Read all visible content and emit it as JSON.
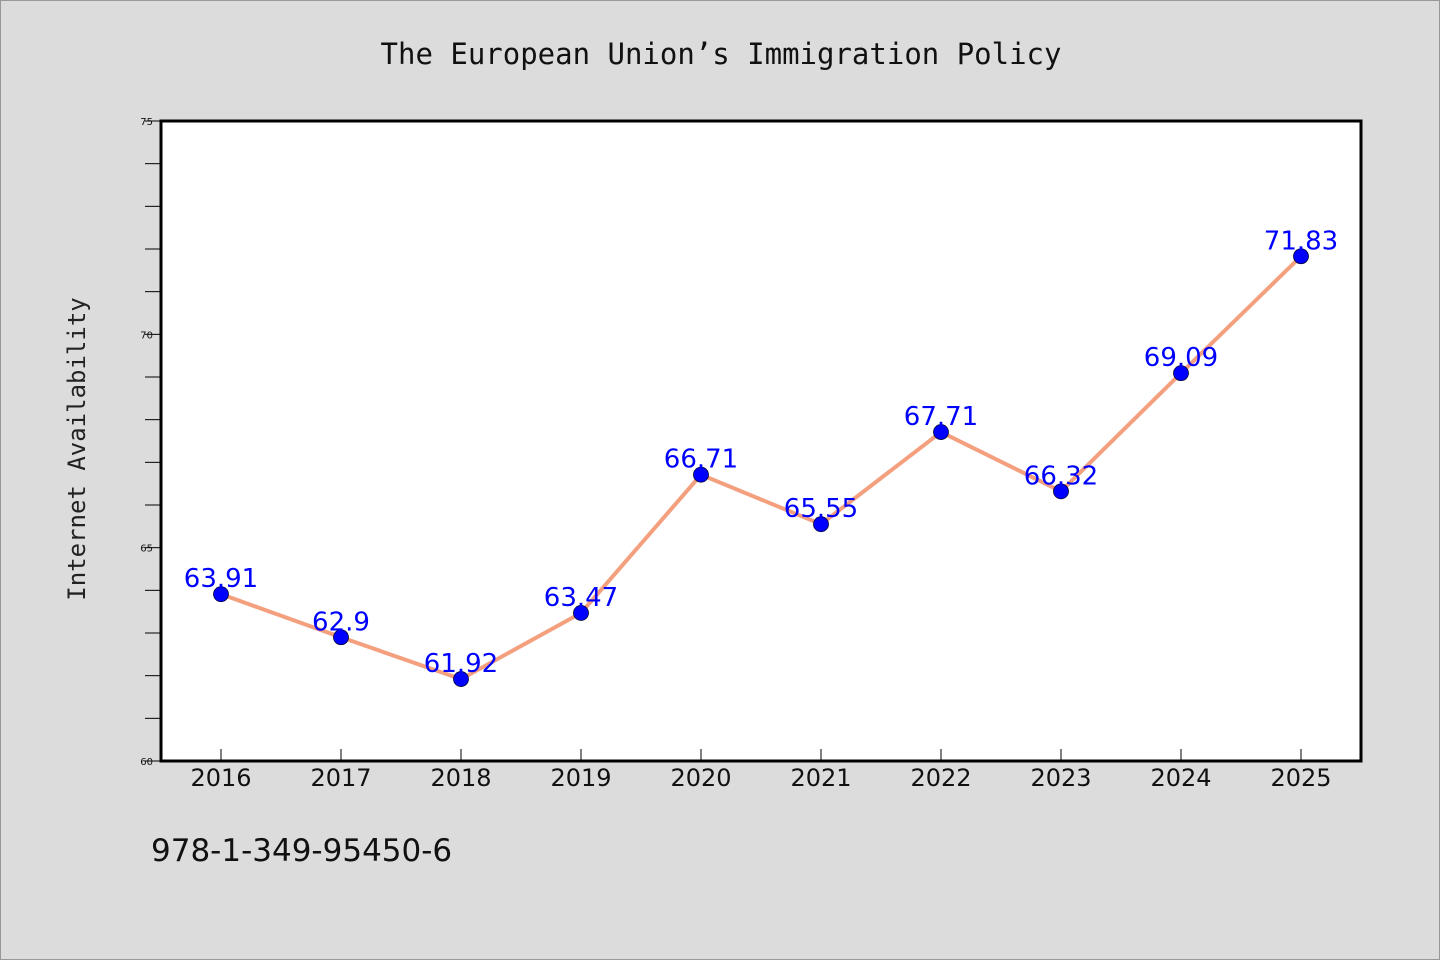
{
  "title": "The European Union’s Immigration Policy",
  "footer": "978-1-349-95450-6",
  "colors": {
    "background": "#dcdcdc",
    "plot_background": "#ffffff",
    "line": "#f4a07e",
    "marker": "#0000ff",
    "data_label": "#0000ff"
  },
  "chart_data": {
    "type": "line",
    "x": [
      "2016",
      "2017",
      "2018",
      "2019",
      "2020",
      "2021",
      "2022",
      "2023",
      "2024",
      "2025"
    ],
    "series": [
      {
        "values": [
          63.91,
          62.9,
          61.92,
          63.47,
          66.71,
          65.55,
          67.71,
          66.32,
          69.09,
          71.83
        ],
        "labels": [
          "63.91",
          "62.9",
          "61.92",
          "63.47",
          "66.71",
          "65.55",
          "67.71",
          "66.32",
          "69.09",
          "71.83"
        ]
      }
    ],
    "title": "The European Union’s Immigration Policy",
    "xlabel": "",
    "ylabel": "Internet Availability",
    "ylim": [
      60,
      75
    ],
    "yticks": [
      60,
      65,
      70,
      75
    ],
    "grid": false,
    "legend": "none"
  }
}
